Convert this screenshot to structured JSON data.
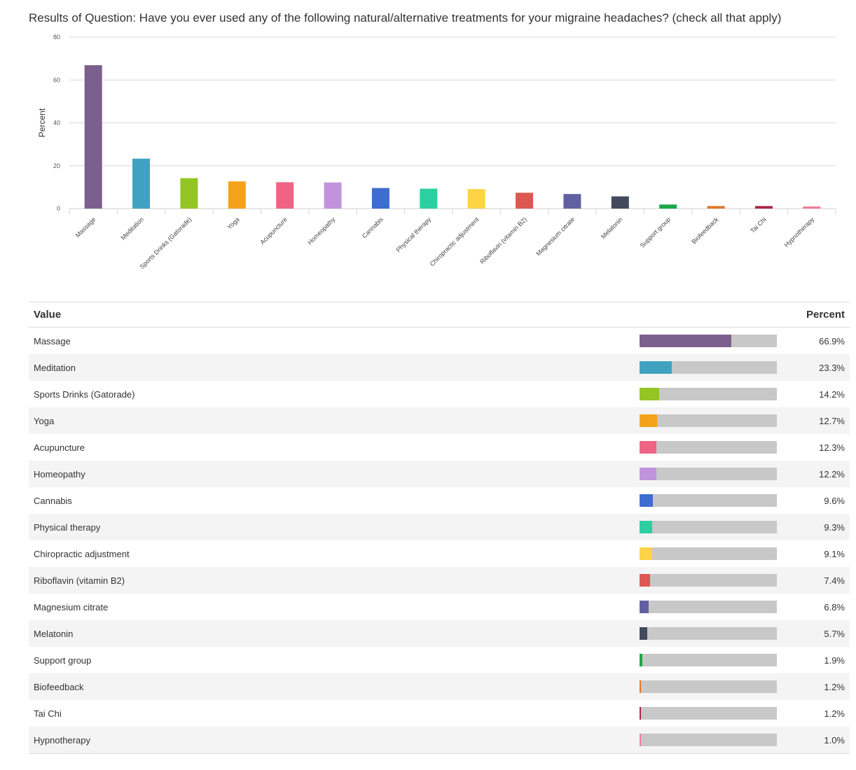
{
  "title": "Results of Question: Have you ever used any of the following natural/alternative treatments for your migraine headaches? (check all that apply)",
  "table": {
    "value_header": "Value",
    "percent_header": "Percent"
  },
  "chart_data": {
    "type": "bar",
    "ylabel": "Percent",
    "ylim": [
      0,
      80
    ],
    "yticks": [
      "0",
      "20",
      "40",
      "60",
      "80"
    ],
    "grid": true,
    "categories": [
      "Massage",
      "Meditation",
      "Sports Drinks (Gatorade)",
      "Yoga",
      "Acupuncture",
      "Homeopathy",
      "Cannabis",
      "Physical therapy",
      "Chiropractic adjustment",
      "Riboflavin (vitamin B2)",
      "Magnesium citrate",
      "Melatonin",
      "Support group",
      "Biofeedback",
      "Tai Chi",
      "Hypnotherapy"
    ],
    "values": [
      66.9,
      23.3,
      14.2,
      12.7,
      12.3,
      12.2,
      9.6,
      9.3,
      9.1,
      7.4,
      6.8,
      5.7,
      1.9,
      1.2,
      1.2,
      1.0
    ],
    "labels": [
      "66.9%",
      "23.3%",
      "14.2%",
      "12.7%",
      "12.3%",
      "12.2%",
      "9.6%",
      "9.3%",
      "9.1%",
      "7.4%",
      "6.8%",
      "5.7%",
      "1.9%",
      "1.2%",
      "1.2%",
      "1.0%"
    ],
    "colors": [
      "#7b5f8c",
      "#40a2c1",
      "#93c524",
      "#f4a21c",
      "#ef6485",
      "#c193dd",
      "#3d6dd1",
      "#2dcfa0",
      "#fdd446",
      "#de5752",
      "#6161a1",
      "#444a5e",
      "#1aa84a",
      "#e0772a",
      "#a62844",
      "#f27b98"
    ]
  }
}
